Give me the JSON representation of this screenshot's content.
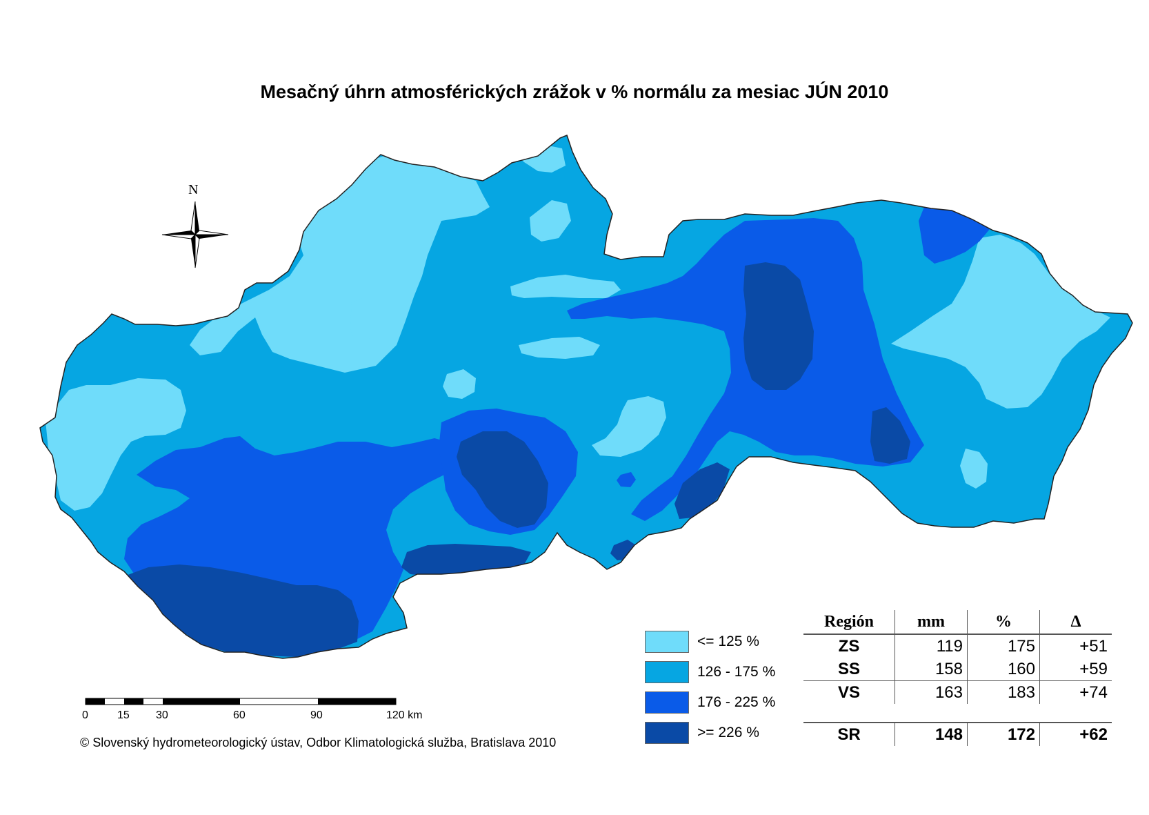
{
  "title": "Mesačný úhrn atmosférických zrážok v % normálu za mesiac JÚN 2010",
  "north_label": "N",
  "legend": [
    {
      "label": "<= 125 %",
      "color": "#6fdcfa"
    },
    {
      "label": "126 - 175 %",
      "color": "#06a6e2"
    },
    {
      "label": "176 - 225 %",
      "color": "#0a5be8"
    },
    {
      "label": ">= 226 %",
      "color": "#0a4aa6"
    }
  ],
  "table": {
    "headers": {
      "region": "Región",
      "mm": "mm",
      "pct": "%",
      "delta": "Δ"
    },
    "rows": [
      {
        "region": "ZS",
        "mm": "119",
        "pct": "175",
        "delta": "+51"
      },
      {
        "region": "SS",
        "mm": "158",
        "pct": "160",
        "delta": "+59"
      },
      {
        "region": "VS",
        "mm": "163",
        "pct": "183",
        "delta": "+74"
      }
    ],
    "total": {
      "region": "SR",
      "mm": "148",
      "pct": "172",
      "delta": "+62"
    }
  },
  "scale_bar": {
    "labels": [
      "0",
      "15",
      "30",
      "60",
      "90",
      "120 km"
    ]
  },
  "copyright": "© Slovenský hydrometeorologický ústav, Odbor Klimatologická služba, Bratislava 2010"
}
